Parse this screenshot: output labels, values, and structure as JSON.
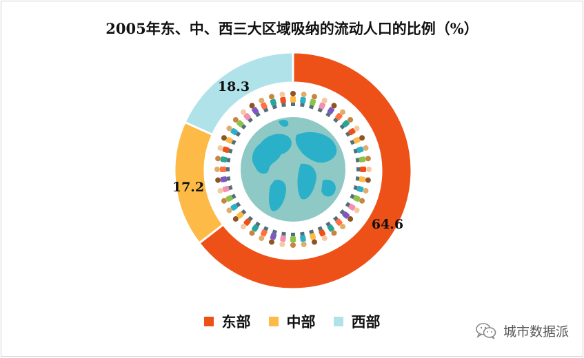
{
  "chart_data": {
    "type": "pie",
    "title": "2005年东、中、西三大区域吸纳的流动人口的比例（%）",
    "categories": [
      "东部",
      "中部",
      "西部"
    ],
    "values": [
      64.6,
      17.2,
      18.3
    ],
    "colors": [
      "#EE5118",
      "#FDBA46",
      "#B0E2EA"
    ],
    "legend_position": "bottom"
  },
  "watermark": {
    "text": "城市数据派",
    "icon": "wechat-icon"
  }
}
